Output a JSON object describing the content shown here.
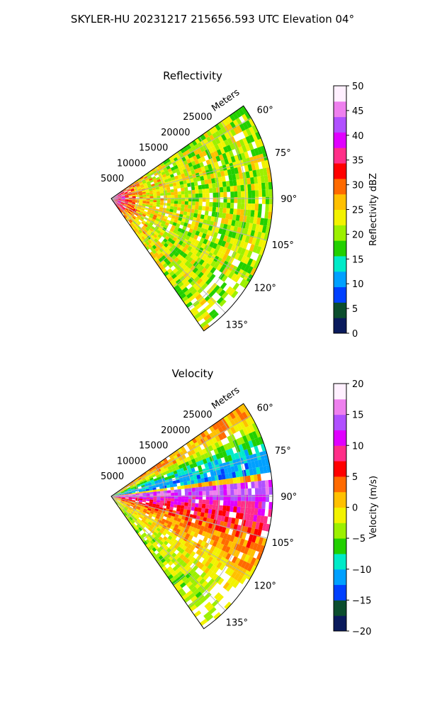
{
  "figure": {
    "title": "SKYLER-HU  20231217  215656.593 UTC Elevation 04°"
  },
  "chart_data": [
    {
      "type": "heatmap",
      "projection": "polar-sector",
      "title": "Reflectivity",
      "range_label": "Meters",
      "range_ticks": [
        5000,
        10000,
        15000,
        20000,
        25000
      ],
      "range_tick_labels": [
        "5000",
        "10000",
        "15000",
        "20000",
        "25000"
      ],
      "range_lim": [
        0,
        30000
      ],
      "azimuth_lim": [
        55,
        145
      ],
      "azimuth_ticks": [
        60,
        75,
        90,
        105,
        120,
        135
      ],
      "azimuth_tick_labels": [
        "60°",
        "75°",
        "90°",
        "105°",
        "120°",
        "135°"
      ],
      "grid": true,
      "colorbar": {
        "label": "Reflectivity dBZ",
        "min": 0,
        "max": 50,
        "ticks": [
          0,
          5,
          10,
          15,
          20,
          25,
          30,
          35,
          40,
          45,
          50
        ],
        "tick_labels": [
          "0",
          "5",
          "10",
          "15",
          "20",
          "25",
          "30",
          "35",
          "40",
          "45",
          "50"
        ]
      },
      "colormap": [
        "#0a1a5c",
        "#0b4d2e",
        "#0040ff",
        "#00a0ff",
        "#00eac8",
        "#22d000",
        "#9cf000",
        "#f2f200",
        "#ffc000",
        "#ff6a00",
        "#ff0000",
        "#ff2e88",
        "#e000ff",
        "#b050ff",
        "#ee80ee",
        "#fff0ff"
      ],
      "field_profile": [
        {
          "range": 1500,
          "value": 36
        },
        {
          "range": 6000,
          "value": 25
        },
        {
          "range": 15000,
          "value": 22
        },
        {
          "range": 26000,
          "value": 21
        }
      ]
    },
    {
      "type": "heatmap",
      "projection": "polar-sector",
      "title": "Velocity",
      "range_label": "Meters",
      "range_ticks": [
        5000,
        10000,
        15000,
        20000,
        25000
      ],
      "range_tick_labels": [
        "5000",
        "10000",
        "15000",
        "20000",
        "25000"
      ],
      "range_lim": [
        0,
        30000
      ],
      "azimuth_lim": [
        55,
        145
      ],
      "azimuth_ticks": [
        60,
        75,
        90,
        105,
        120,
        135
      ],
      "azimuth_tick_labels": [
        "60°",
        "75°",
        "90°",
        "105°",
        "120°",
        "135°"
      ],
      "grid": true,
      "colorbar": {
        "label": "Velocity (m/s)",
        "min": -20,
        "max": 20,
        "ticks": [
          -20,
          -15,
          -10,
          -5,
          0,
          5,
          10,
          15,
          20
        ],
        "tick_labels": [
          "−20",
          "−15",
          "−10",
          "−5",
          "0",
          "5",
          "10",
          "15",
          "20"
        ]
      },
      "colormap": [
        "#0a1a5c",
        "#0b4d2e",
        "#0040ff",
        "#00a0ff",
        "#00eac8",
        "#22d000",
        "#9cf000",
        "#f2f200",
        "#ffc000",
        "#ff6a00",
        "#ff0000",
        "#ff2e88",
        "#e000ff",
        "#b050ff",
        "#ee80ee",
        "#fff0ff"
      ],
      "azimuth_profile": [
        {
          "azimuth": 60,
          "value": 2
        },
        {
          "azimuth": 70,
          "value": -8
        },
        {
          "azimuth": 80,
          "value": -12
        },
        {
          "azimuth": 86,
          "value": 16
        },
        {
          "azimuth": 92,
          "value": 11
        },
        {
          "azimuth": 110,
          "value": 3
        },
        {
          "azimuth": 135,
          "value": -3
        }
      ]
    }
  ]
}
